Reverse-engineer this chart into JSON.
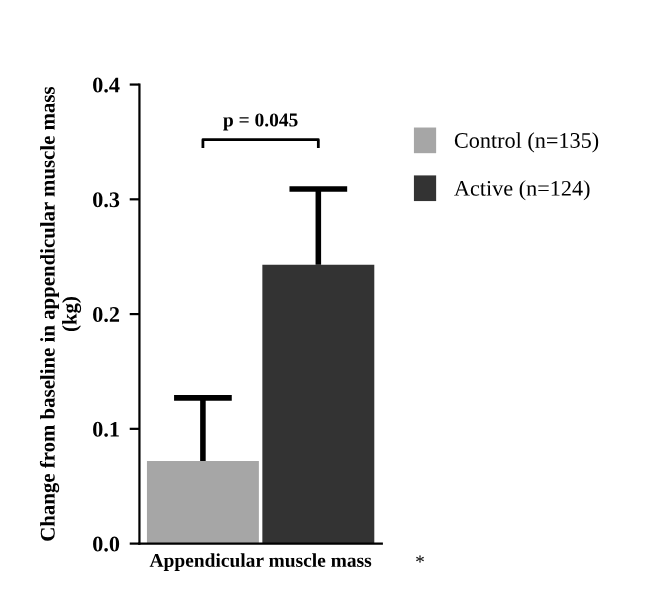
{
  "chart_data": {
    "type": "bar",
    "ylabel": "Change from baseline in appendicular muscle mass\n(kg)",
    "categories": [
      "Appendicular muscle mass"
    ],
    "series": [
      {
        "name": "Control (n=135)",
        "color": "#a6a6a6",
        "values": [
          0.072
        ],
        "errors": [
          [
            0.072,
            0.127
          ]
        ]
      },
      {
        "name": "Active (n=124)",
        "color": "#333333",
        "values": [
          0.243
        ],
        "errors": [
          [
            0.243,
            0.309
          ]
        ]
      }
    ],
    "ylim": [
      0,
      0.4
    ],
    "yticks": [
      {
        "value": 0,
        "label": "0.0"
      },
      0.1,
      0.2,
      0.3,
      0.4
    ],
    "annotations": [
      "p = 0.045",
      "*"
    ],
    "legend": "right",
    "grid": false
  }
}
